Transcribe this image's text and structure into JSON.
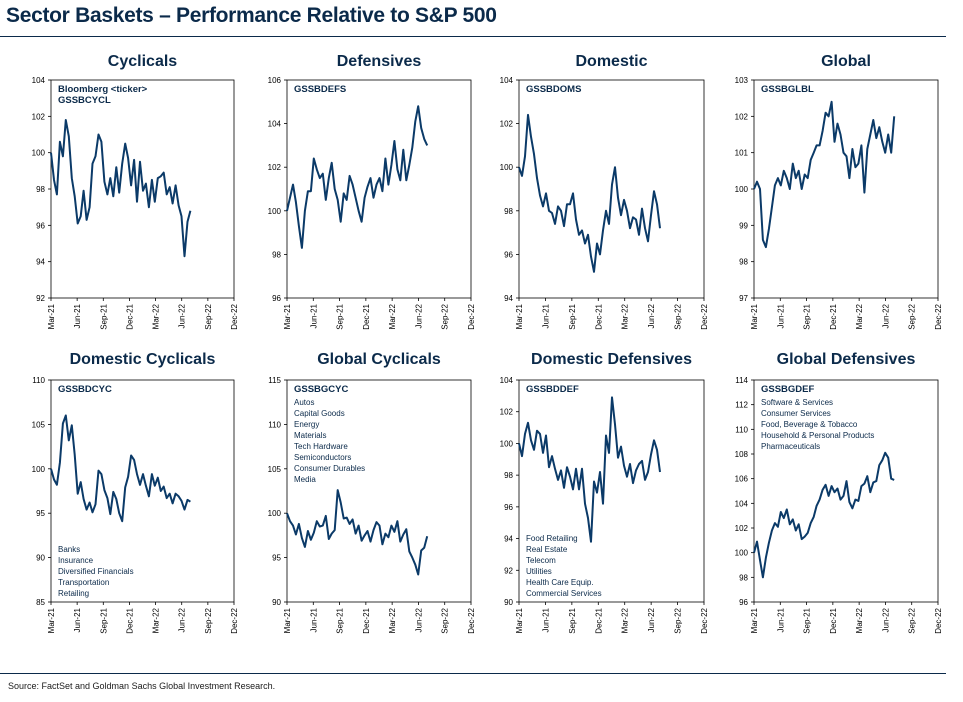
{
  "page": {
    "title": "Sector Baskets – Performance Relative to S&P 500",
    "source": "Source: FactSet and Goldman Sachs Global Investment Research."
  },
  "colors": {
    "line": "#0b3a68",
    "text": "#0b2a4a",
    "axis": "#000000"
  },
  "chart_data": [
    {
      "type": "line",
      "title": "Cyclicals",
      "ticker": "Bloomberg <ticker>\nGSSBCYCL",
      "constituents": [],
      "ylim": [
        92,
        104
      ],
      "yticks": [
        92,
        94,
        96,
        98,
        100,
        102,
        104
      ],
      "x_ticks": [
        "Mar-21",
        "Jun-21",
        "Sep-21",
        "Dec-21",
        "Mar-22",
        "Jun-22",
        "Sep-22",
        "Dec-22"
      ],
      "x": [
        0,
        1.5,
        3,
        4.5,
        6,
        7.5,
        9,
        10.5,
        12,
        13.5,
        15,
        16.5,
        18,
        19.5,
        21,
        22.5,
        24,
        25.5,
        27,
        28.5,
        30,
        31.5,
        33,
        34.5,
        36,
        37.5,
        39,
        40.5,
        42,
        43.5,
        45,
        46.5,
        48,
        49.5,
        51,
        52.5,
        54,
        55.5,
        57,
        58.5,
        60,
        61.5,
        63,
        64.5,
        66,
        67.5,
        69,
        70.5
      ],
      "y": [
        100,
        98.5,
        97.7,
        100.6,
        99.8,
        101.8,
        100.9,
        98.6,
        97.6,
        96.1,
        96.5,
        97.9,
        96.3,
        97.0,
        99.4,
        99.8,
        101.0,
        100.6,
        98.4,
        97.7,
        98.6,
        97.6,
        99.2,
        97.8,
        99.4,
        100.5,
        99.7,
        98.2,
        99.6,
        97.3,
        99.5,
        97.9,
        98.3,
        97.0,
        98.5,
        97.3,
        98.6,
        98.7,
        98.9,
        97.7,
        98.1,
        97.2,
        98.2,
        97.1,
        96.5,
        94.3,
        96.2,
        96.8
      ]
    },
    {
      "type": "line",
      "title": "Defensives",
      "ticker": "GSSBDEFS",
      "constituents": [],
      "ylim": [
        96,
        106
      ],
      "yticks": [
        96,
        98,
        100,
        102,
        104,
        106
      ],
      "x_ticks": [
        "Mar-21",
        "Jun-21",
        "Sep-21",
        "Dec-21",
        "Mar-22",
        "Jun-22",
        "Sep-22",
        "Dec-22"
      ],
      "x": [
        0,
        1.5,
        3,
        4.5,
        6,
        7.5,
        9,
        10.5,
        12,
        13.5,
        15,
        16.5,
        18,
        19.5,
        21,
        22.5,
        24,
        25.5,
        27,
        28.5,
        30,
        31.5,
        33,
        34.5,
        36,
        37.5,
        39,
        40.5,
        42,
        43.5,
        45,
        46.5,
        48,
        49.5,
        51,
        52.5,
        54,
        55.5,
        57,
        58.5,
        60,
        61.5,
        63,
        64.5,
        66,
        67.5,
        69,
        70.5
      ],
      "y": [
        100,
        100.6,
        101.2,
        100.4,
        99.3,
        98.3,
        100.0,
        100.9,
        100.9,
        102.4,
        101.9,
        101.5,
        101.7,
        100.5,
        101.5,
        102.2,
        101.0,
        100.5,
        99.5,
        100.8,
        100.5,
        101.6,
        101.2,
        100.6,
        100.0,
        99.5,
        100.6,
        101.1,
        101.5,
        100.6,
        101.2,
        101.5,
        100.9,
        102.4,
        101.2,
        102.1,
        103.2,
        101.9,
        101.4,
        102.8,
        101.4,
        102.1,
        102.9,
        104.1,
        104.8,
        103.8,
        103.3,
        103.0
      ]
    },
    {
      "type": "line",
      "title": "Domestic",
      "ticker": "GSSBDOMS",
      "constituents": [],
      "ylim": [
        94,
        104
      ],
      "yticks": [
        94,
        96,
        98,
        100,
        102,
        104
      ],
      "x_ticks": [
        "Mar-21",
        "Jun-21",
        "Sep-21",
        "Dec-21",
        "Mar-22",
        "Jun-22",
        "Sep-22",
        "Dec-22"
      ],
      "x": [
        0,
        1.5,
        3,
        4.5,
        6,
        7.5,
        9,
        10.5,
        12,
        13.5,
        15,
        16.5,
        18,
        19.5,
        21,
        22.5,
        24,
        25.5,
        27,
        28.5,
        30,
        31.5,
        33,
        34.5,
        36,
        37.5,
        39,
        40.5,
        42,
        43.5,
        45,
        46.5,
        48,
        49.5,
        51,
        52.5,
        54,
        55.5,
        57,
        58.5,
        60,
        61.5,
        63,
        64.5,
        66,
        67.5,
        69,
        70.5
      ],
      "y": [
        100,
        99.6,
        100.5,
        102.4,
        101.4,
        100.6,
        99.5,
        98.7,
        98.2,
        98.8,
        98.0,
        97.9,
        97.4,
        98.2,
        98.0,
        97.3,
        98.3,
        98.3,
        98.8,
        97.6,
        96.9,
        97.1,
        96.5,
        96.9,
        95.9,
        95.2,
        96.5,
        96.0,
        97.1,
        98.0,
        97.4,
        99.2,
        100.0,
        98.6,
        97.8,
        98.5,
        98.0,
        97.2,
        97.7,
        97.6,
        96.9,
        98.1,
        97.2,
        96.6,
        97.8,
        98.9,
        98.3,
        97.2
      ]
    },
    {
      "type": "line",
      "title": "Global",
      "ticker": "GSSBGLBL",
      "constituents": [],
      "ylim": [
        97,
        103
      ],
      "yticks": [
        97,
        98,
        99,
        100,
        101,
        102,
        103
      ],
      "x_ticks": [
        "Mar-21",
        "Jun-21",
        "Sep-21",
        "Dec-21",
        "Mar-22",
        "Jun-22",
        "Sep-22",
        "Dec-22"
      ],
      "x": [
        0,
        1.5,
        3,
        4.5,
        6,
        7.5,
        9,
        10.5,
        12,
        13.5,
        15,
        16.5,
        18,
        19.5,
        21,
        22.5,
        24,
        25.5,
        27,
        28.5,
        30,
        31.5,
        33,
        34.5,
        36,
        37.5,
        39,
        40.5,
        42,
        43.5,
        45,
        46.5,
        48,
        49.5,
        51,
        52.5,
        54,
        55.5,
        57,
        58.5,
        60,
        61.5,
        63,
        64.5,
        66,
        67.5,
        69,
        70.5
      ],
      "y": [
        100,
        100.2,
        100.0,
        98.6,
        98.4,
        98.9,
        99.5,
        100.1,
        100.3,
        100.1,
        100.5,
        100.3,
        100.0,
        100.7,
        100.3,
        100.5,
        100.0,
        100.4,
        100.3,
        100.8,
        101.0,
        101.2,
        101.2,
        101.6,
        102.1,
        102.0,
        102.4,
        101.3,
        101.8,
        101.5,
        101.0,
        100.9,
        100.3,
        101.1,
        100.6,
        100.7,
        101.2,
        99.9,
        101.1,
        101.5,
        101.9,
        101.4,
        101.7,
        101.3,
        101.0,
        101.5,
        101.0,
        102.0
      ]
    },
    {
      "type": "line",
      "title": "Domestic Cyclicals",
      "ticker": "GSSBDCYC",
      "constituents": [
        "Banks",
        "Insurance",
        "Diversified Financials",
        "Transportation",
        "Retailing"
      ],
      "ylim": [
        85,
        110
      ],
      "yticks": [
        85,
        90,
        95,
        100,
        105,
        110
      ],
      "x_ticks": [
        "Mar-21",
        "Jun-21",
        "Sep-21",
        "Dec-21",
        "Mar-22",
        "Jun-22",
        "Sep-22",
        "Dec-22"
      ],
      "x": [
        0,
        1.5,
        3,
        4.5,
        6,
        7.5,
        9,
        10.5,
        12,
        13.5,
        15,
        16.5,
        18,
        19.5,
        21,
        22.5,
        24,
        25.5,
        27,
        28.5,
        30,
        31.5,
        33,
        34.5,
        36,
        37.5,
        39,
        40.5,
        42,
        43.5,
        45,
        46.5,
        48,
        49.5,
        51,
        52.5,
        54,
        55.5,
        57,
        58.5,
        60,
        61.5,
        63,
        64.5,
        66,
        67.5,
        69,
        70.5
      ],
      "y": [
        100,
        98.8,
        98.2,
        100.7,
        105.1,
        106.0,
        103.2,
        104.9,
        101.6,
        97.2,
        98.5,
        96.6,
        95.4,
        96.2,
        95.1,
        96.0,
        99.8,
        99.4,
        97.6,
        96.7,
        94.9,
        97.4,
        96.6,
        95.0,
        94.1,
        97.9,
        99.1,
        101.5,
        101.0,
        99.4,
        98.2,
        99.4,
        98.1,
        96.9,
        99.4,
        98.1,
        99.0,
        97.5,
        98.0,
        96.7,
        97.2,
        96.1,
        97.2,
        96.9,
        96.4,
        95.4,
        96.5,
        96.3
      ]
    },
    {
      "type": "line",
      "title": "Global Cyclicals",
      "ticker": "GSSBGCYC",
      "constituents": [
        "Autos",
        "Capital Goods",
        "Energy",
        "Materials",
        "Tech Hardware",
        "Semiconductors",
        "Consumer Durables",
        "Media"
      ],
      "ylim": [
        90,
        115
      ],
      "yticks": [
        90,
        95,
        100,
        105,
        110,
        115
      ],
      "x_ticks": [
        "Mar-21",
        "Jun-21",
        "Sep-21",
        "Dec-21",
        "Mar-22",
        "Jun-22",
        "Sep-22",
        "Dec-22"
      ],
      "x": [
        0,
        1.5,
        3,
        4.5,
        6,
        7.5,
        9,
        10.5,
        12,
        13.5,
        15,
        16.5,
        18,
        19.5,
        21,
        22.5,
        24,
        25.5,
        27,
        28.5,
        30,
        31.5,
        33,
        34.5,
        36,
        37.5,
        39,
        40.5,
        42,
        43.5,
        45,
        46.5,
        48,
        49.5,
        51,
        52.5,
        54,
        55.5,
        57,
        58.5,
        60,
        61.5,
        63,
        64.5,
        66,
        67.5,
        69,
        70.5
      ],
      "y": [
        100,
        99.1,
        98.6,
        97.6,
        98.8,
        97.2,
        96.2,
        98.0,
        97.0,
        97.8,
        99.1,
        98.5,
        98.6,
        99.7,
        97.1,
        97.7,
        98.1,
        102.6,
        101.2,
        99.4,
        99.5,
        98.8,
        99.3,
        97.7,
        98.6,
        96.9,
        97.5,
        98.0,
        96.8,
        98.1,
        99.0,
        98.6,
        96.5,
        97.7,
        97.3,
        98.6,
        97.9,
        99.1,
        96.8,
        97.6,
        98.2,
        95.7,
        95.0,
        94.2,
        93.1,
        95.8,
        96.1,
        97.4
      ]
    },
    {
      "type": "line",
      "title": "Domestic Defensives",
      "ticker": "GSSBDDEF",
      "constituents": [
        "Food Retailing",
        "Real Estate",
        "Telecom",
        "Utilities",
        "Health Care Equip.",
        "Commercial Services"
      ],
      "ylim": [
        90,
        104
      ],
      "yticks": [
        90,
        92,
        94,
        96,
        98,
        100,
        102,
        104
      ],
      "x_ticks": [
        "Mar-21",
        "Jun-21",
        "Sep-21",
        "Dec-21",
        "Mar-22",
        "Jun-22",
        "Sep-22",
        "Dec-22"
      ],
      "x": [
        0,
        1.5,
        3,
        4.5,
        6,
        7.5,
        9,
        10.5,
        12,
        13.5,
        15,
        16.5,
        18,
        19.5,
        21,
        22.5,
        24,
        25.5,
        27,
        28.5,
        30,
        31.5,
        33,
        34.5,
        36,
        37.5,
        39,
        40.5,
        42,
        43.5,
        45,
        46.5,
        48,
        49.5,
        51,
        52.5,
        54,
        55.5,
        57,
        58.5,
        60,
        61.5,
        63,
        64.5,
        66,
        67.5,
        69,
        70.5
      ],
      "y": [
        100,
        99.2,
        100.6,
        101.3,
        100.2,
        99.6,
        100.8,
        100.6,
        99.4,
        100.5,
        98.5,
        99.2,
        98.4,
        97.7,
        98.3,
        97.2,
        98.5,
        97.9,
        97.1,
        98.4,
        97.1,
        98.4,
        96.2,
        95.3,
        93.8,
        97.6,
        96.9,
        98.2,
        96.2,
        100.5,
        99.4,
        102.9,
        101.2,
        99.1,
        99.8,
        98.6,
        97.9,
        98.7,
        97.5,
        98.3,
        98.7,
        98.9,
        97.7,
        98.2,
        99.3,
        100.2,
        99.6,
        98.2
      ]
    },
    {
      "type": "line",
      "title": "Global Defensives",
      "ticker": "GSSBGDEF",
      "constituents": [
        "Software & Services",
        "Consumer Services",
        "Food, Beverage & Tobacco",
        "Household & Personal Products",
        "Pharmaceuticals"
      ],
      "ylim": [
        96,
        114
      ],
      "yticks": [
        96,
        98,
        100,
        102,
        104,
        106,
        108,
        110,
        112,
        114
      ],
      "x_ticks": [
        "Mar-21",
        "Jun-21",
        "Sep-21",
        "Dec-21",
        "Mar-22",
        "Jun-22",
        "Sep-22",
        "Dec-22"
      ],
      "x": [
        0,
        1.5,
        3,
        4.5,
        6,
        7.5,
        9,
        10.5,
        12,
        13.5,
        15,
        16.5,
        18,
        19.5,
        21,
        22.5,
        24,
        25.5,
        27,
        28.5,
        30,
        31.5,
        33,
        34.5,
        36,
        37.5,
        39,
        40.5,
        42,
        43.5,
        45,
        46.5,
        48,
        49.5,
        51,
        52.5,
        54,
        55.5,
        57,
        58.5,
        60,
        61.5,
        63,
        64.5,
        66,
        67.5,
        69,
        70.5
      ],
      "y": [
        100,
        100.9,
        99.4,
        98.0,
        99.6,
        100.8,
        101.8,
        102.4,
        102.1,
        103.3,
        102.8,
        103.5,
        102.3,
        102.7,
        101.8,
        102.3,
        101.1,
        101.3,
        101.6,
        102.4,
        102.9,
        103.8,
        104.3,
        105.1,
        105.5,
        104.6,
        105.4,
        104.9,
        105.2,
        104.3,
        104.6,
        105.8,
        104.1,
        103.6,
        104.3,
        104.2,
        105.4,
        105.6,
        106.2,
        104.9,
        105.7,
        105.8,
        107.1,
        107.5,
        108.1,
        107.7,
        106.0,
        105.9
      ]
    }
  ]
}
